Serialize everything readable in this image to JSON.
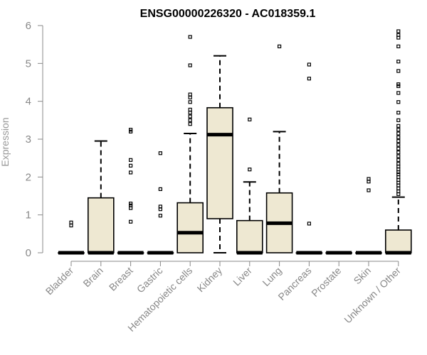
{
  "chart_data": {
    "type": "boxplot",
    "title": "ENSG00000226320 - AC018359.1",
    "ylabel": "Expression",
    "xlabel": "",
    "ylim": [
      0,
      6
    ],
    "yticks": [
      "0",
      "1",
      "2",
      "3",
      "4",
      "5",
      "6"
    ],
    "grid": false,
    "colors": {
      "box_fill": "#EEE8D2",
      "box_stroke": "#000000",
      "axis": "#888888"
    },
    "categories": [
      "Bladder",
      "Brain",
      "Breast",
      "Gastric",
      "Hematopoietic cells",
      "Kidney",
      "Liver",
      "Lung",
      "Pancreas",
      "Prostate",
      "Skin",
      "Unknown / Other"
    ],
    "boxes": [
      {
        "category": "Bladder",
        "q1": 0,
        "median": 0,
        "q3": 0,
        "whisker_low": 0,
        "whisker_high": 0,
        "outliers": [
          0.72,
          0.8
        ]
      },
      {
        "category": "Brain",
        "q1": 0,
        "median": 0,
        "q3": 1.45,
        "whisker_low": 0,
        "whisker_high": 2.95,
        "outliers": []
      },
      {
        "category": "Breast",
        "q1": 0,
        "median": 0,
        "q3": 0,
        "whisker_low": 0,
        "whisker_high": 0,
        "outliers": [
          0.82,
          1.18,
          1.25,
          1.3,
          2.12,
          2.3,
          2.45,
          3.2,
          3.25
        ]
      },
      {
        "category": "Gastric",
        "q1": 0,
        "median": 0,
        "q3": 0,
        "whisker_low": 0,
        "whisker_high": 0,
        "outliers": [
          0.98,
          1.15,
          1.22,
          1.68,
          2.63
        ]
      },
      {
        "category": "Hematopoietic cells",
        "q1": 0,
        "median": 0.53,
        "q3": 1.32,
        "whisker_low": 0,
        "whisker_high": 3.15,
        "outliers": [
          3.4,
          3.5,
          3.6,
          3.7,
          3.78,
          3.98,
          4.1,
          4.18,
          4.95,
          5.7
        ]
      },
      {
        "category": "Kidney",
        "q1": 0.9,
        "median": 3.12,
        "q3": 3.83,
        "whisker_low": 0,
        "whisker_high": 5.2,
        "outliers": []
      },
      {
        "category": "Liver",
        "q1": 0,
        "median": 0,
        "q3": 0.85,
        "whisker_low": 0,
        "whisker_high": 1.87,
        "outliers": [
          2.2,
          3.52
        ]
      },
      {
        "category": "Lung",
        "q1": 0,
        "median": 0.78,
        "q3": 1.58,
        "whisker_low": 0,
        "whisker_high": 3.2,
        "outliers": [
          5.45
        ]
      },
      {
        "category": "Pancreas",
        "q1": 0,
        "median": 0,
        "q3": 0,
        "whisker_low": 0,
        "whisker_high": 0,
        "outliers": [
          0.77,
          4.6,
          4.97
        ]
      },
      {
        "category": "Prostate",
        "q1": 0,
        "median": 0,
        "q3": 0,
        "whisker_low": 0,
        "whisker_high": 0,
        "outliers": []
      },
      {
        "category": "Skin",
        "q1": 0,
        "median": 0,
        "q3": 0,
        "whisker_low": 0,
        "whisker_high": 0,
        "outliers": [
          1.65,
          1.88,
          1.95
        ]
      },
      {
        "category": "Unknown / Other",
        "q1": 0,
        "median": 0,
        "q3": 0.6,
        "whisker_low": 0,
        "whisker_high": 1.47,
        "outliers": [
          1.55,
          1.62,
          1.7,
          1.78,
          1.85,
          1.92,
          2.0,
          2.07,
          2.13,
          2.2,
          2.28,
          2.35,
          2.45,
          2.55,
          2.65,
          2.75,
          2.85,
          2.95,
          3.05,
          3.15,
          3.25,
          3.35,
          3.5,
          3.7,
          3.98,
          4.22,
          4.4,
          4.45,
          4.8,
          5.05,
          5.45,
          5.68,
          5.75,
          5.85
        ]
      }
    ]
  }
}
